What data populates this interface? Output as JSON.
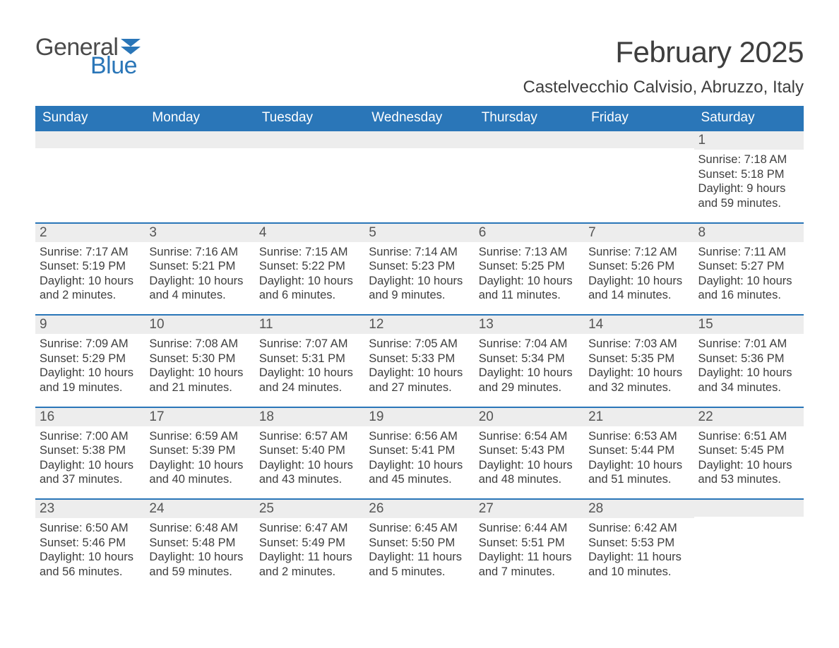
{
  "logo": {
    "text_general": "General",
    "text_blue": "Blue",
    "flag_color": "#2a76b8",
    "general_color": "#4a4a4a",
    "blue_color": "#2a76b8"
  },
  "header": {
    "month_title": "February 2025",
    "location": "Castelvecchio Calvisio, Abruzzo, Italy"
  },
  "colors": {
    "header_bg": "#2a76b8",
    "header_text": "#ffffff",
    "daynum_bg": "#ededed",
    "body_text": "#3e3e3e",
    "row_border": "#2a76b8",
    "page_bg": "#ffffff"
  },
  "typography": {
    "month_title_size_pt": 32,
    "location_size_pt": 18,
    "dayheader_size_pt": 14,
    "daynum_size_pt": 14,
    "body_size_pt": 12
  },
  "day_headers": [
    "Sunday",
    "Monday",
    "Tuesday",
    "Wednesday",
    "Thursday",
    "Friday",
    "Saturday"
  ],
  "labels": {
    "sunrise": "Sunrise:",
    "sunset": "Sunset:",
    "daylight_prefix": "Daylight:",
    "hours_word": "hours",
    "and_word": "and",
    "minutes_word": "minutes."
  },
  "weeks": [
    [
      {
        "day": "",
        "sunrise": "",
        "sunset": "",
        "daylight_h": "",
        "daylight_m": ""
      },
      {
        "day": "",
        "sunrise": "",
        "sunset": "",
        "daylight_h": "",
        "daylight_m": ""
      },
      {
        "day": "",
        "sunrise": "",
        "sunset": "",
        "daylight_h": "",
        "daylight_m": ""
      },
      {
        "day": "",
        "sunrise": "",
        "sunset": "",
        "daylight_h": "",
        "daylight_m": ""
      },
      {
        "day": "",
        "sunrise": "",
        "sunset": "",
        "daylight_h": "",
        "daylight_m": ""
      },
      {
        "day": "",
        "sunrise": "",
        "sunset": "",
        "daylight_h": "",
        "daylight_m": ""
      },
      {
        "day": "1",
        "sunrise": "7:18 AM",
        "sunset": "5:18 PM",
        "daylight_h": "9",
        "daylight_m": "59"
      }
    ],
    [
      {
        "day": "2",
        "sunrise": "7:17 AM",
        "sunset": "5:19 PM",
        "daylight_h": "10",
        "daylight_m": "2"
      },
      {
        "day": "3",
        "sunrise": "7:16 AM",
        "sunset": "5:21 PM",
        "daylight_h": "10",
        "daylight_m": "4"
      },
      {
        "day": "4",
        "sunrise": "7:15 AM",
        "sunset": "5:22 PM",
        "daylight_h": "10",
        "daylight_m": "6"
      },
      {
        "day": "5",
        "sunrise": "7:14 AM",
        "sunset": "5:23 PM",
        "daylight_h": "10",
        "daylight_m": "9"
      },
      {
        "day": "6",
        "sunrise": "7:13 AM",
        "sunset": "5:25 PM",
        "daylight_h": "10",
        "daylight_m": "11"
      },
      {
        "day": "7",
        "sunrise": "7:12 AM",
        "sunset": "5:26 PM",
        "daylight_h": "10",
        "daylight_m": "14"
      },
      {
        "day": "8",
        "sunrise": "7:11 AM",
        "sunset": "5:27 PM",
        "daylight_h": "10",
        "daylight_m": "16"
      }
    ],
    [
      {
        "day": "9",
        "sunrise": "7:09 AM",
        "sunset": "5:29 PM",
        "daylight_h": "10",
        "daylight_m": "19"
      },
      {
        "day": "10",
        "sunrise": "7:08 AM",
        "sunset": "5:30 PM",
        "daylight_h": "10",
        "daylight_m": "21"
      },
      {
        "day": "11",
        "sunrise": "7:07 AM",
        "sunset": "5:31 PM",
        "daylight_h": "10",
        "daylight_m": "24"
      },
      {
        "day": "12",
        "sunrise": "7:05 AM",
        "sunset": "5:33 PM",
        "daylight_h": "10",
        "daylight_m": "27"
      },
      {
        "day": "13",
        "sunrise": "7:04 AM",
        "sunset": "5:34 PM",
        "daylight_h": "10",
        "daylight_m": "29"
      },
      {
        "day": "14",
        "sunrise": "7:03 AM",
        "sunset": "5:35 PM",
        "daylight_h": "10",
        "daylight_m": "32"
      },
      {
        "day": "15",
        "sunrise": "7:01 AM",
        "sunset": "5:36 PM",
        "daylight_h": "10",
        "daylight_m": "34"
      }
    ],
    [
      {
        "day": "16",
        "sunrise": "7:00 AM",
        "sunset": "5:38 PM",
        "daylight_h": "10",
        "daylight_m": "37"
      },
      {
        "day": "17",
        "sunrise": "6:59 AM",
        "sunset": "5:39 PM",
        "daylight_h": "10",
        "daylight_m": "40"
      },
      {
        "day": "18",
        "sunrise": "6:57 AM",
        "sunset": "5:40 PM",
        "daylight_h": "10",
        "daylight_m": "43"
      },
      {
        "day": "19",
        "sunrise": "6:56 AM",
        "sunset": "5:41 PM",
        "daylight_h": "10",
        "daylight_m": "45"
      },
      {
        "day": "20",
        "sunrise": "6:54 AM",
        "sunset": "5:43 PM",
        "daylight_h": "10",
        "daylight_m": "48"
      },
      {
        "day": "21",
        "sunrise": "6:53 AM",
        "sunset": "5:44 PM",
        "daylight_h": "10",
        "daylight_m": "51"
      },
      {
        "day": "22",
        "sunrise": "6:51 AM",
        "sunset": "5:45 PM",
        "daylight_h": "10",
        "daylight_m": "53"
      }
    ],
    [
      {
        "day": "23",
        "sunrise": "6:50 AM",
        "sunset": "5:46 PM",
        "daylight_h": "10",
        "daylight_m": "56"
      },
      {
        "day": "24",
        "sunrise": "6:48 AM",
        "sunset": "5:48 PM",
        "daylight_h": "10",
        "daylight_m": "59"
      },
      {
        "day": "25",
        "sunrise": "6:47 AM",
        "sunset": "5:49 PM",
        "daylight_h": "11",
        "daylight_m": "2"
      },
      {
        "day": "26",
        "sunrise": "6:45 AM",
        "sunset": "5:50 PM",
        "daylight_h": "11",
        "daylight_m": "5"
      },
      {
        "day": "27",
        "sunrise": "6:44 AM",
        "sunset": "5:51 PM",
        "daylight_h": "11",
        "daylight_m": "7"
      },
      {
        "day": "28",
        "sunrise": "6:42 AM",
        "sunset": "5:53 PM",
        "daylight_h": "11",
        "daylight_m": "10"
      },
      {
        "day": "",
        "sunrise": "",
        "sunset": "",
        "daylight_h": "",
        "daylight_m": ""
      }
    ]
  ]
}
